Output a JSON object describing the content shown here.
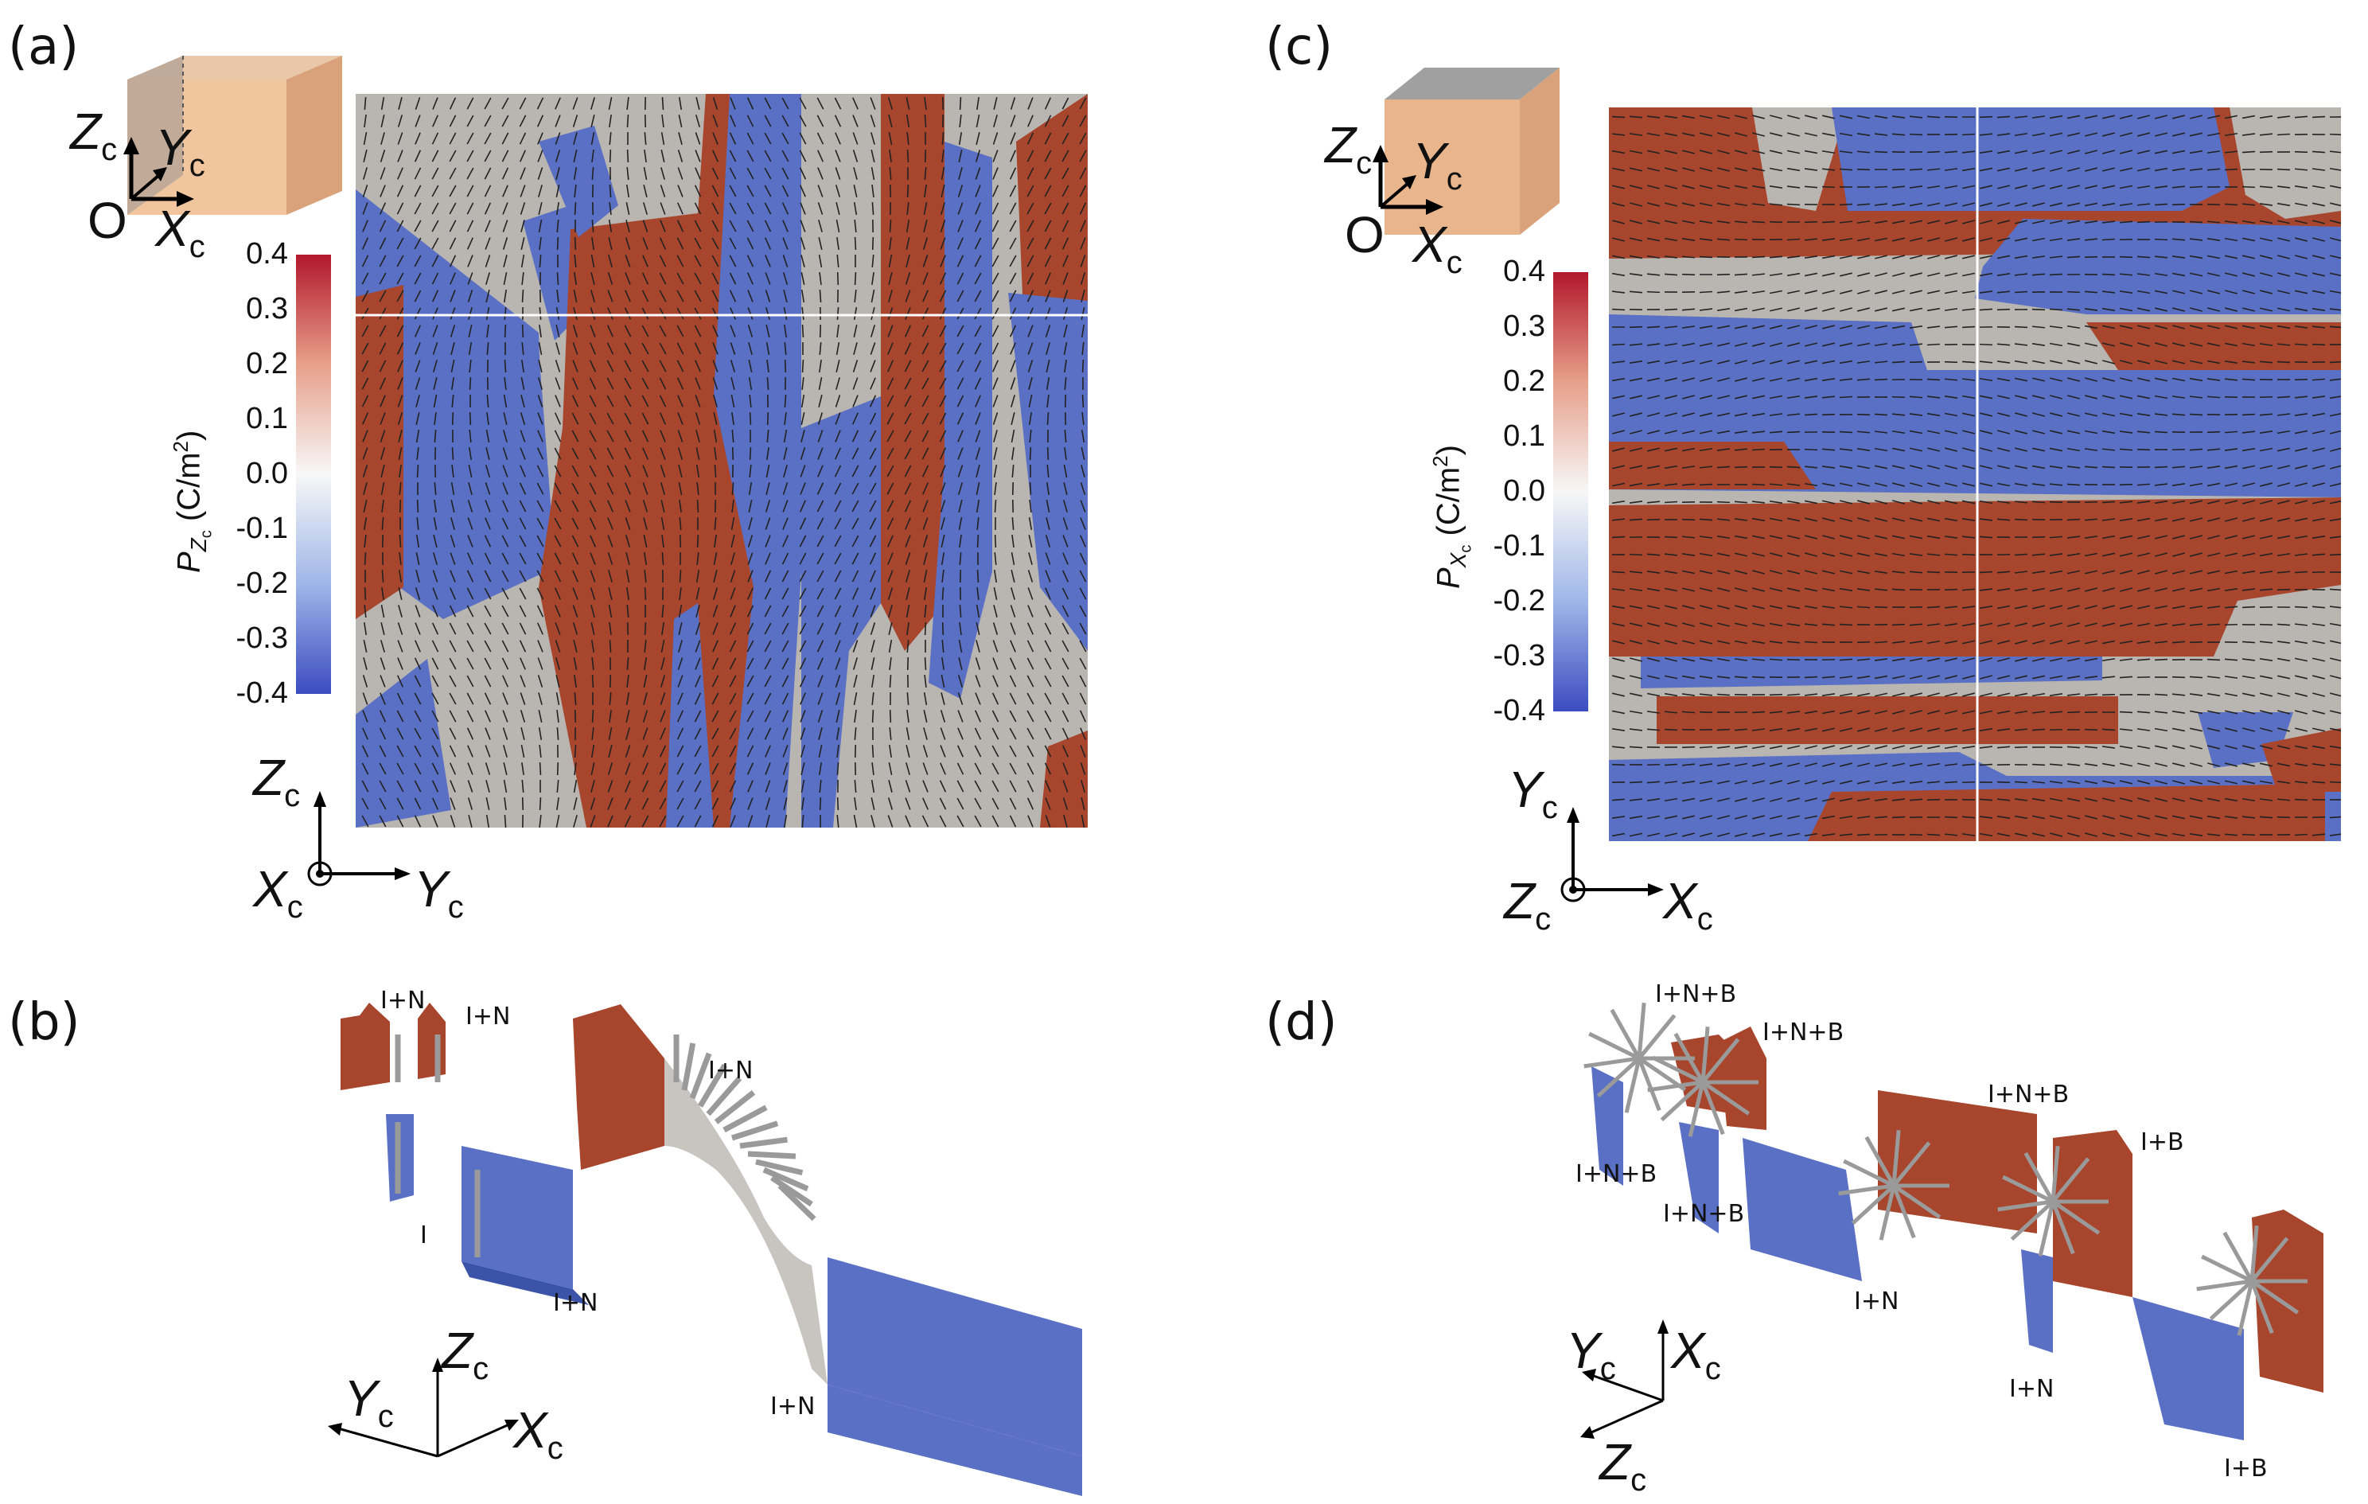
{
  "panels": {
    "a": {
      "label": "(a)",
      "colorbar": {
        "title_main": "P",
        "title_sub": "Z",
        "title_subsub": "c",
        "title_unit": "(C/m",
        "title_unit_sup": "2",
        "title_unit_end": ")",
        "ticks": [
          "0.4",
          "0.3",
          "0.2",
          "0.1",
          "0.0",
          "-0.1",
          "-0.2",
          "-0.3",
          "-0.4"
        ],
        "range": [
          -0.4,
          0.4
        ]
      },
      "cube_axes": {
        "z": "Z",
        "y": "Y",
        "x": "X",
        "sub": "c",
        "origin": "O"
      },
      "plane_axes": {
        "vertical": "Z",
        "horizontal": "Y",
        "normal": "X",
        "sub": "c"
      }
    },
    "b": {
      "label": "(b)",
      "annotations": [
        "I+N",
        "I+N",
        "I+N",
        "I",
        "I+N",
        "I+N"
      ],
      "axes": {
        "z": "Z",
        "y": "Y",
        "x": "X",
        "sub": "c"
      }
    },
    "c": {
      "label": "(c)",
      "colorbar": {
        "title_main": "P",
        "title_sub": "X",
        "title_subsub": "c",
        "title_unit": "(C/m",
        "title_unit_sup": "2",
        "title_unit_end": ")",
        "ticks": [
          "0.4",
          "0.3",
          "0.2",
          "0.1",
          "0.0",
          "-0.1",
          "-0.2",
          "-0.3",
          "-0.4"
        ],
        "range": [
          -0.4,
          0.4
        ]
      },
      "cube_axes": {
        "z": "Z",
        "y": "Y",
        "x": "X",
        "sub": "c",
        "origin": "O"
      },
      "plane_axes": {
        "vertical": "Y",
        "horizontal": "X",
        "normal": "Z",
        "sub": "c"
      }
    },
    "d": {
      "label": "(d)",
      "annotations": [
        "I+N+B",
        "I+N+B",
        "I+N+B",
        "I+B",
        "I+N+B",
        "I+N+B",
        "I+N",
        "I+N",
        "I+B"
      ],
      "axes": {
        "y": "Y",
        "x": "X",
        "z": "Z",
        "sub": "c"
      }
    }
  },
  "colors": {
    "positive": "#a8452d",
    "negative": "#5a70c4",
    "neutral": "#b9b5b0",
    "cbar_top": "#b2182b",
    "cbar_mid": "#f7f7f7",
    "cbar_bottom": "#3b4cc0",
    "arrow": "#9a9a9a"
  }
}
